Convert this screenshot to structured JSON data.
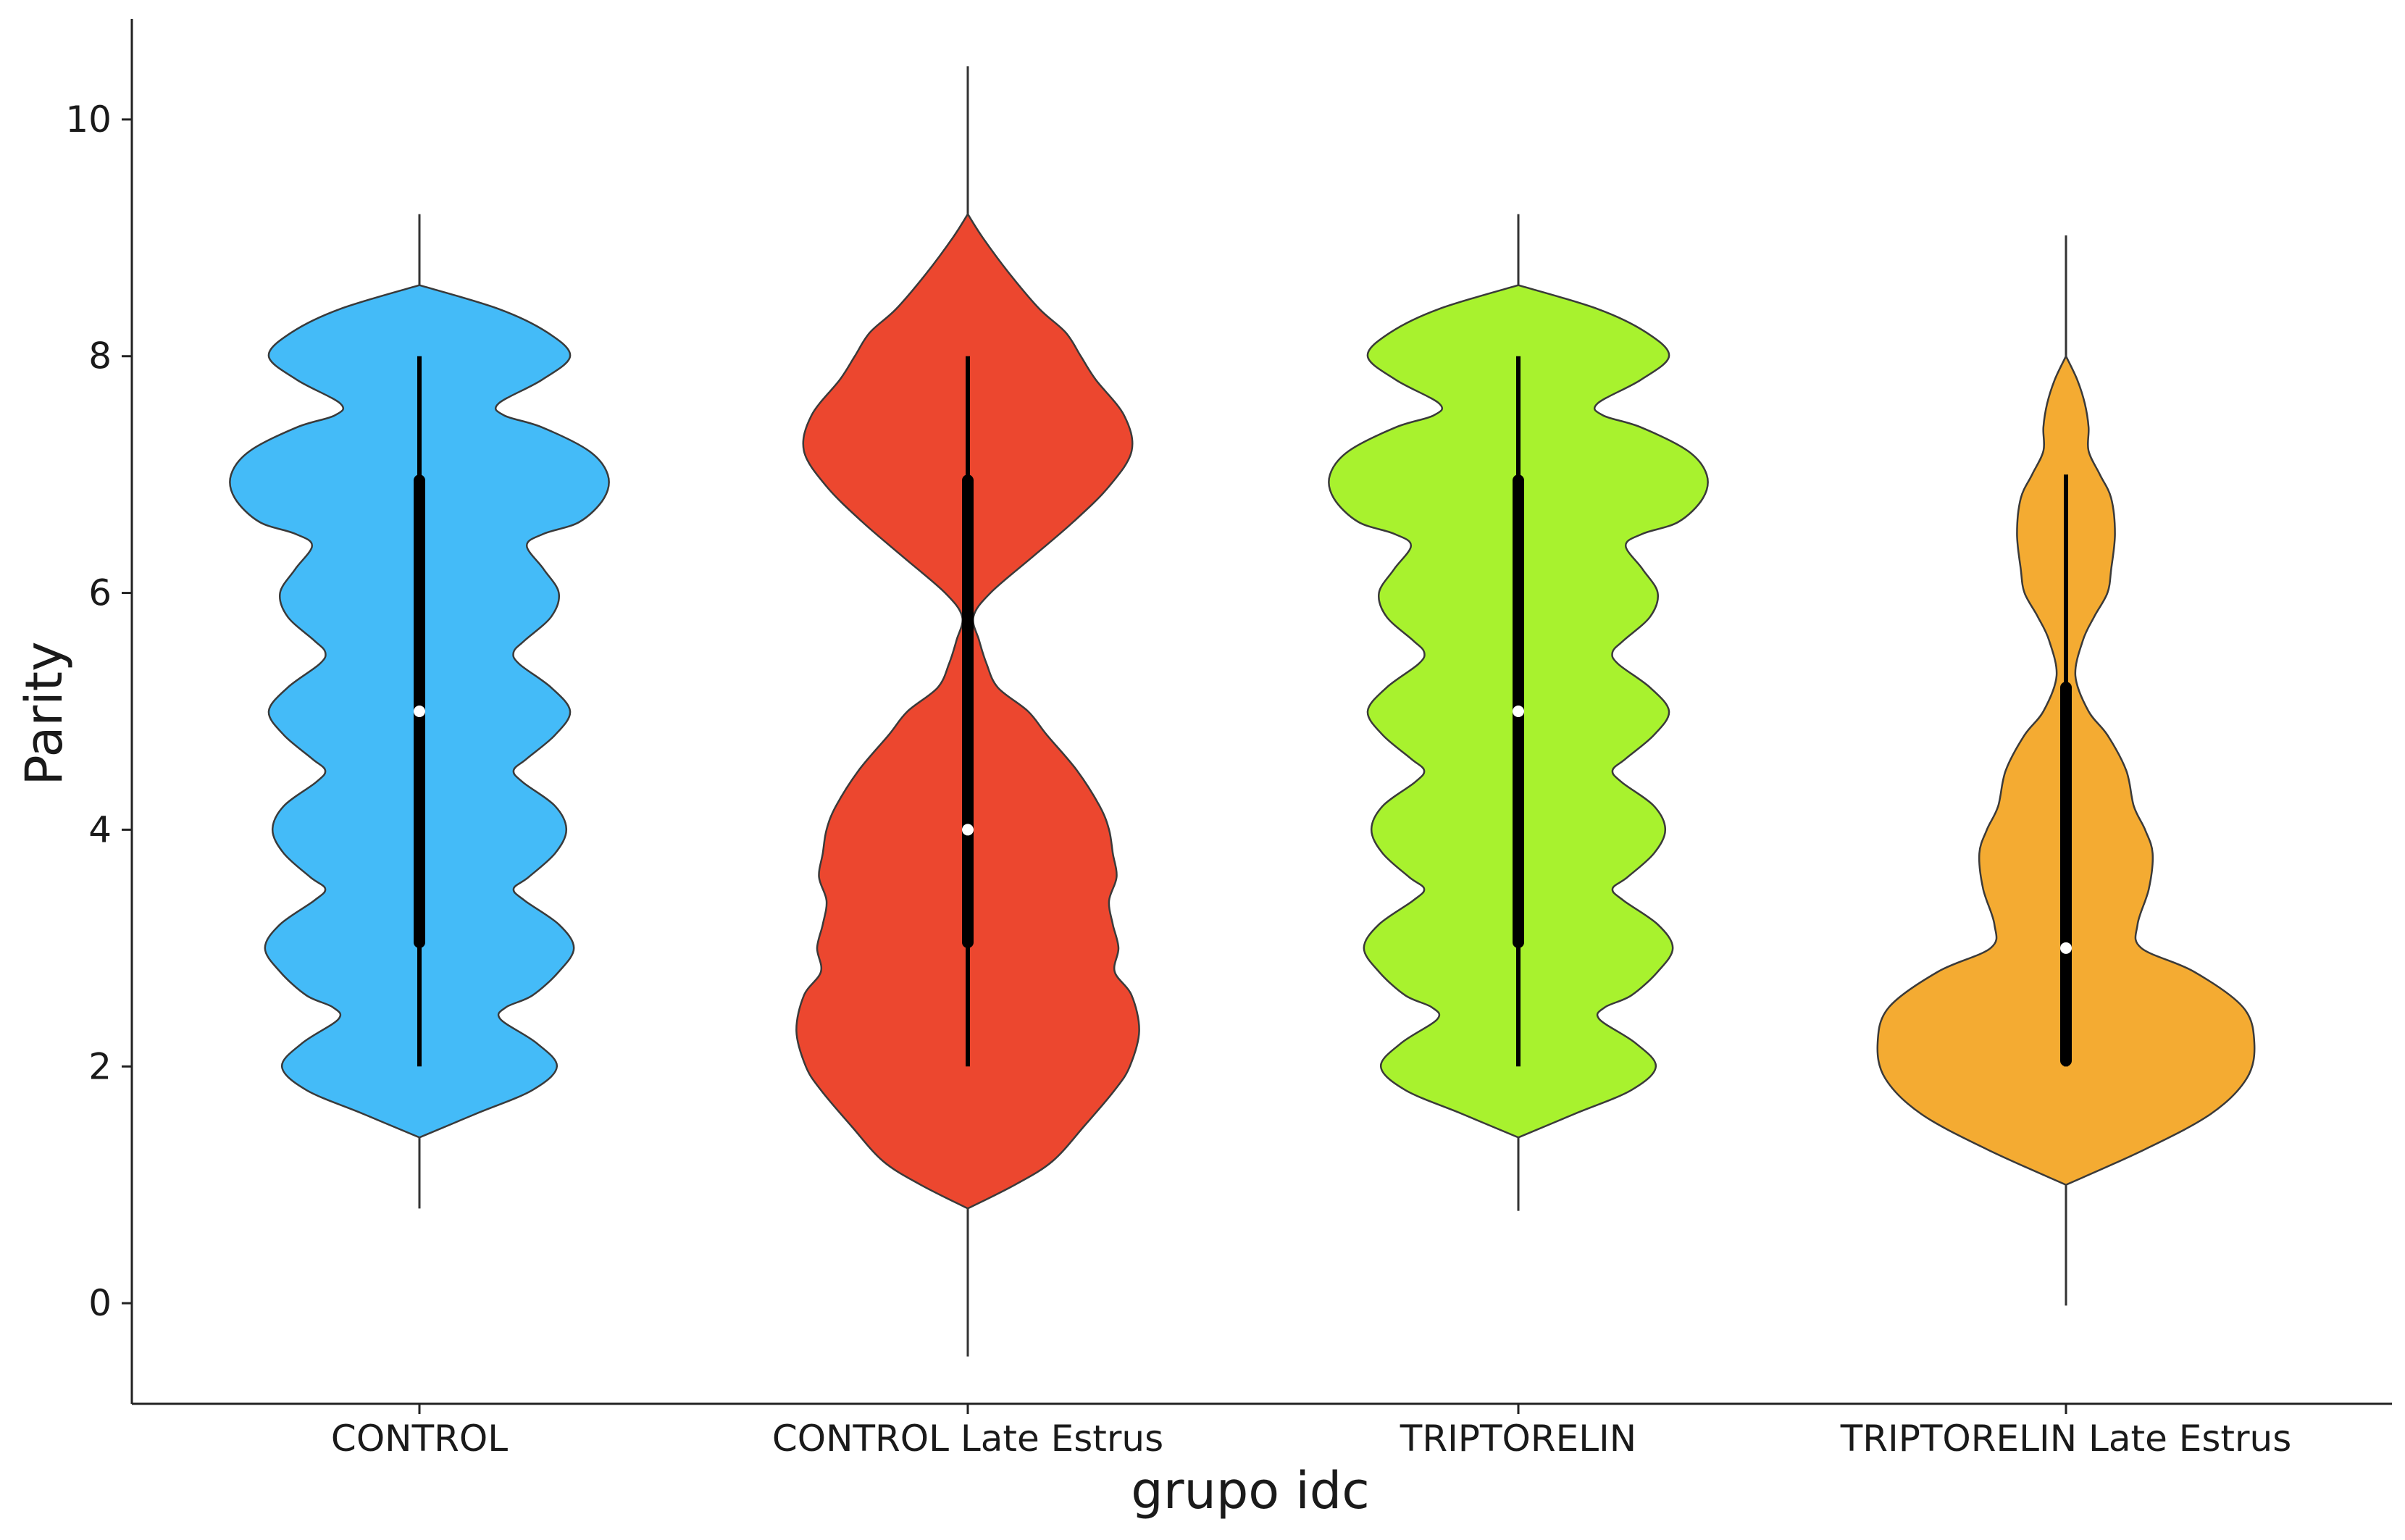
{
  "chart_data": {
    "type": "violin",
    "xlabel": "grupo idc",
    "ylabel": "Parity",
    "ylim": [
      -0.85,
      10.85
    ],
    "yticks": [
      0,
      2,
      4,
      6,
      8,
      10
    ],
    "categories": [
      "CONTROL",
      "CONTROL Late Estrus",
      "TRIPTORELIN",
      "TRIPTORELIN Late Estrus"
    ],
    "grid": false,
    "legend": "none",
    "series": [
      {
        "category": "CONTROL",
        "color": "#44bbf8",
        "whisker": [
          0.8,
          9.2
        ],
        "min": 2,
        "q1": 3,
        "median": 5,
        "q3": 7,
        "max": 8,
        "density_y": [
          1.4,
          1.6,
          1.8,
          2.0,
          2.2,
          2.4,
          2.5,
          2.6,
          2.8,
          3.0,
          3.2,
          3.4,
          3.5,
          3.6,
          3.8,
          4.0,
          4.2,
          4.4,
          4.5,
          4.6,
          4.8,
          5.0,
          5.2,
          5.4,
          5.5,
          5.6,
          5.8,
          6.0,
          6.2,
          6.4,
          6.5,
          6.6,
          6.8,
          7.0,
          7.2,
          7.4,
          7.5,
          7.6,
          7.8,
          8.0,
          8.2,
          8.4,
          8.6
        ],
        "density_w": [
          0,
          0.3,
          0.6,
          0.73,
          0.62,
          0.43,
          0.46,
          0.6,
          0.74,
          0.82,
          0.74,
          0.56,
          0.5,
          0.58,
          0.72,
          0.78,
          0.72,
          0.55,
          0.5,
          0.57,
          0.72,
          0.8,
          0.7,
          0.53,
          0.5,
          0.56,
          0.7,
          0.74,
          0.66,
          0.57,
          0.66,
          0.85,
          0.98,
          1.0,
          0.9,
          0.65,
          0.45,
          0.42,
          0.65,
          0.8,
          0.68,
          0.42,
          0
        ]
      },
      {
        "category": "CONTROL Late Estrus",
        "color": "#ec472f",
        "whisker": [
          -0.45,
          10.45
        ],
        "min": 2,
        "q1": 3,
        "median": 4,
        "q3": 7,
        "max": 8,
        "density_y": [
          0.8,
          1.0,
          1.2,
          1.5,
          1.8,
          2.0,
          2.3,
          2.6,
          2.8,
          3.0,
          3.2,
          3.4,
          3.6,
          3.8,
          4.0,
          4.2,
          4.5,
          4.8,
          5.0,
          5.2,
          5.4,
          5.6,
          5.8,
          6.0,
          6.3,
          6.6,
          6.9,
          7.2,
          7.5,
          7.8,
          8.0,
          8.2,
          8.4,
          8.7,
          9.0,
          9.2
        ],
        "density_w": [
          0,
          0.25,
          0.45,
          0.62,
          0.78,
          0.86,
          0.91,
          0.87,
          0.78,
          0.8,
          0.77,
          0.75,
          0.79,
          0.77,
          0.75,
          0.7,
          0.58,
          0.42,
          0.32,
          0.16,
          0.1,
          0.06,
          0.03,
          0.12,
          0.34,
          0.56,
          0.75,
          0.87,
          0.83,
          0.68,
          0.6,
          0.52,
          0.38,
          0.22,
          0.08,
          0
        ]
      },
      {
        "category": "TRIPTORELIN",
        "color": "#a8f22e",
        "whisker": [
          0.78,
          9.2
        ],
        "min": 2,
        "q1": 3,
        "median": 5,
        "q3": 7,
        "max": 8,
        "density_y": [
          1.4,
          1.6,
          1.8,
          2.0,
          2.2,
          2.4,
          2.5,
          2.6,
          2.8,
          3.0,
          3.2,
          3.4,
          3.5,
          3.6,
          3.8,
          4.0,
          4.2,
          4.4,
          4.5,
          4.6,
          4.8,
          5.0,
          5.2,
          5.4,
          5.5,
          5.6,
          5.8,
          6.0,
          6.2,
          6.4,
          6.5,
          6.6,
          6.8,
          7.0,
          7.2,
          7.4,
          7.5,
          7.6,
          7.8,
          8.0,
          8.2,
          8.4,
          8.6
        ],
        "density_w": [
          0,
          0.3,
          0.6,
          0.73,
          0.62,
          0.43,
          0.46,
          0.6,
          0.74,
          0.82,
          0.74,
          0.56,
          0.5,
          0.58,
          0.72,
          0.78,
          0.72,
          0.55,
          0.5,
          0.57,
          0.72,
          0.8,
          0.7,
          0.53,
          0.5,
          0.56,
          0.7,
          0.74,
          0.66,
          0.57,
          0.66,
          0.85,
          0.98,
          1.0,
          0.9,
          0.65,
          0.45,
          0.42,
          0.65,
          0.8,
          0.68,
          0.42,
          0
        ]
      },
      {
        "category": "TRIPTORELIN Late Estrus",
        "color": "#f4ab32",
        "whisker": [
          -0.02,
          9.02
        ],
        "min": 2,
        "q1": 2,
        "median": 3,
        "q3": 5.25,
        "max": 7,
        "density_y": [
          1.0,
          1.3,
          1.6,
          1.9,
          2.2,
          2.5,
          2.8,
          3.0,
          3.2,
          3.5,
          3.8,
          4.0,
          4.2,
          4.5,
          4.8,
          5.0,
          5.3,
          5.6,
          5.8,
          6.0,
          6.2,
          6.5,
          6.8,
          7.0,
          7.2,
          7.4,
          7.6,
          7.8,
          8.0
        ],
        "density_w": [
          0,
          0.42,
          0.77,
          0.96,
          1.0,
          0.94,
          0.68,
          0.4,
          0.38,
          0.44,
          0.46,
          0.42,
          0.36,
          0.32,
          0.22,
          0.12,
          0.05,
          0.09,
          0.15,
          0.22,
          0.24,
          0.26,
          0.24,
          0.18,
          0.12,
          0.12,
          0.1,
          0.06,
          0
        ]
      }
    ]
  }
}
